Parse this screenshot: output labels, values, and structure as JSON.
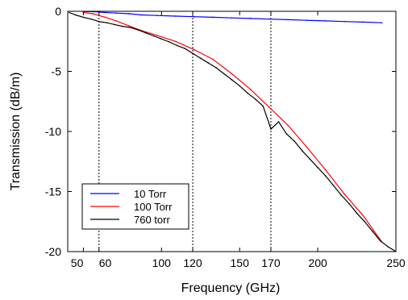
{
  "chart_data": {
    "type": "line",
    "title": "",
    "xlabel": "Frequency (GHz)",
    "ylabel": "Transmission (dB/m)",
    "xlim": [
      40,
      250
    ],
    "ylim": [
      -20,
      0
    ],
    "x_ticks": [
      50,
      60,
      100,
      120,
      150,
      170,
      200,
      250
    ],
    "x_tick_labels": [
      "50",
      "60",
      "100",
      "120",
      "150",
      "170",
      "200",
      "250"
    ],
    "y_ticks": [
      0,
      -5,
      -10,
      -15,
      -20
    ],
    "y_tick_labels": [
      "0",
      "-5",
      "-10",
      "-15",
      "-20"
    ],
    "reference_lines_x": [
      60,
      120,
      170
    ],
    "legend_position": "lower-left",
    "series": [
      {
        "name": "10 Torr",
        "color": "#0000ff",
        "x": [
          50,
          56,
          64,
          71,
          79,
          87,
          97,
          109,
          121,
          133,
          145,
          157,
          169,
          181,
          193,
          205,
          217,
          229,
          241
        ],
        "values": [
          -0.02,
          -0.03,
          -0.1,
          -0.15,
          -0.2,
          -0.3,
          -0.35,
          -0.4,
          -0.45,
          -0.5,
          -0.55,
          -0.6,
          -0.65,
          -0.7,
          -0.75,
          -0.8,
          -0.85,
          -0.9,
          -0.95
        ]
      },
      {
        "name": "100 Torr",
        "color": "#ff0000",
        "x": [
          50,
          56,
          64,
          71,
          79,
          87,
          97,
          109,
          121,
          133,
          145,
          157,
          169,
          181,
          193,
          205,
          217,
          229,
          241
        ],
        "values": [
          -0.1,
          -0.2,
          -0.5,
          -0.8,
          -1.2,
          -1.6,
          -2.0,
          -2.5,
          -3.2,
          -4.0,
          -5.2,
          -6.5,
          -8.0,
          -9.5,
          -11.3,
          -13.2,
          -15.2,
          -17.0,
          -19.2
        ]
      },
      {
        "name": "760 torr",
        "color": "#000000",
        "x": [
          41,
          45,
          50,
          55,
          60,
          65,
          70,
          75,
          80,
          85,
          90,
          95,
          100,
          105,
          110,
          115,
          120,
          125,
          130,
          135,
          140,
          145,
          150,
          155,
          160,
          165,
          170,
          175,
          180,
          185,
          190,
          195,
          200,
          205,
          210,
          215,
          220,
          225,
          230,
          235,
          240,
          245,
          250
        ],
        "values": [
          -0.1,
          -0.3,
          -0.5,
          -0.65,
          -0.85,
          -0.95,
          -1.1,
          -1.25,
          -1.35,
          -1.55,
          -1.8,
          -2.05,
          -2.3,
          -2.55,
          -2.85,
          -3.1,
          -3.5,
          -3.9,
          -4.3,
          -4.7,
          -5.2,
          -5.7,
          -6.2,
          -6.8,
          -7.3,
          -7.9,
          -9.8,
          -9.2,
          -10.2,
          -10.8,
          -11.6,
          -12.3,
          -13.0,
          -13.7,
          -14.5,
          -15.3,
          -16.0,
          -16.8,
          -17.5,
          -18.3,
          -19.1,
          -19.6,
          -20.0
        ]
      }
    ]
  }
}
